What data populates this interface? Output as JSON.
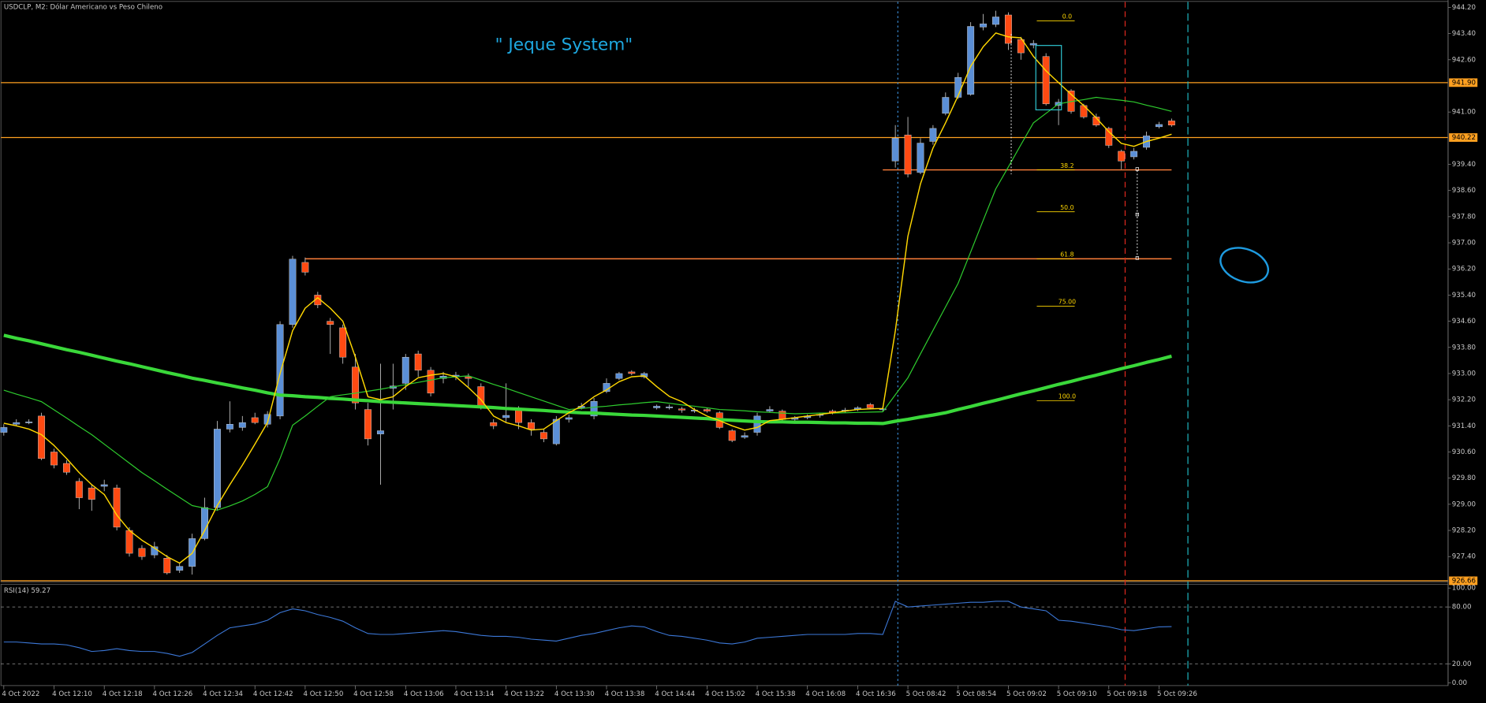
{
  "chart_data": [
    {
      "type": "candlestick",
      "title": "USDCLP, M2:  Dólar Americano vs Peso Chileno",
      "annotation": "\" Jeque System\"",
      "categories": [
        "4 Oct 2022",
        null,
        null,
        null,
        "4 Oct 12:10",
        null,
        null,
        null,
        "4 Oct 12:18",
        null,
        null,
        null,
        "4 Oct 12:26",
        null,
        null,
        null,
        "4 Oct 12:34",
        null,
        null,
        null,
        "4 Oct 12:42",
        null,
        null,
        null,
        "4 Oct 12:50",
        null,
        null,
        null,
        "4 Oct 12:58",
        null,
        null,
        null,
        "4 Oct 13:06",
        null,
        null,
        null,
        "4 Oct 13:14",
        null,
        null,
        null,
        "4 Oct 13:22",
        null,
        null,
        null,
        "4 Oct 13:30",
        null,
        null,
        null,
        "4 Oct 13:38",
        null,
        null,
        null,
        "4 Oct 14:44",
        null,
        null,
        null,
        "4 Oct 15:02",
        null,
        null,
        null,
        "4 Oct 15:38",
        null,
        null,
        null,
        "4 Oct 16:08",
        null,
        null,
        null,
        "4 Oct 16:36",
        null,
        null,
        null,
        "5 Oct 08:42",
        null,
        null,
        null,
        "5 Oct 08:54",
        null,
        null,
        null,
        "5 Oct 09:02",
        null,
        null,
        null,
        "5 Oct 09:10",
        null,
        null,
        null,
        "5 Oct 09:18",
        null,
        null,
        null,
        "5 Oct 09:26",
        null
      ],
      "open": [
        931.2,
        931.45,
        931.5,
        931.7,
        930.6,
        930.25,
        929.7,
        929.5,
        929.55,
        929.5,
        928.2,
        927.65,
        927.45,
        927.35,
        926.98,
        927.1,
        927.95,
        928.9,
        931.3,
        931.35,
        931.65,
        931.45,
        931.7,
        934.5,
        936.4,
        935.4,
        934.6,
        934.4,
        933.2,
        931.9,
        931.15,
        932.55,
        932.7,
        933.6,
        933.1,
        932.85,
        932.9,
        932.9,
        932.6,
        931.5,
        931.65,
        931.9,
        931.5,
        931.2,
        930.85,
        931.6,
        931.95,
        931.7,
        932.45,
        932.85,
        933.05,
        932.9,
        931.95,
        931.95,
        931.92,
        931.85,
        931.9,
        931.8,
        931.25,
        931.05,
        931.2,
        931.85,
        931.85,
        931.6,
        931.65,
        931.72,
        931.85,
        931.85,
        931.9,
        932.05,
        931.9,
        939.5,
        940.3,
        939.15,
        940.1,
        940.96,
        941.45,
        941.54,
        943.6,
        943.68,
        943.97,
        943.22,
        943.05,
        942.7,
        941.2,
        941.65,
        941.2,
        940.85,
        940.5,
        939.8,
        939.63,
        939.92,
        940.55,
        940.73
      ],
      "high": [
        931.45,
        931.6,
        931.6,
        931.8,
        930.7,
        930.35,
        929.8,
        929.6,
        929.75,
        929.6,
        928.3,
        927.75,
        927.85,
        927.45,
        927.2,
        928.1,
        929.2,
        931.55,
        932.15,
        931.7,
        931.8,
        931.85,
        934.6,
        936.6,
        936.55,
        935.5,
        934.7,
        934.5,
        933.6,
        932.1,
        933.3,
        933.3,
        933.6,
        933.7,
        933.2,
        933.05,
        933.05,
        933.0,
        932.7,
        931.6,
        932.7,
        932.0,
        931.6,
        931.3,
        931.7,
        931.75,
        932.1,
        932.25,
        932.85,
        933.05,
        933.1,
        933.05,
        932.05,
        932.05,
        931.98,
        931.95,
        931.95,
        931.85,
        931.3,
        931.2,
        931.8,
        932.0,
        931.9,
        931.7,
        931.75,
        931.8,
        931.9,
        931.95,
        932.0,
        932.1,
        932.0,
        940.6,
        940.85,
        940.2,
        940.6,
        941.6,
        942.2,
        943.75,
        944.0,
        944.1,
        944.05,
        943.3,
        943.2,
        942.8,
        941.4,
        941.7,
        941.25,
        940.95,
        940.55,
        939.85,
        939.9,
        940.4,
        940.7,
        940.8
      ],
      "low": [
        931.1,
        931.4,
        931.45,
        930.35,
        930.1,
        929.9,
        928.85,
        928.8,
        929.4,
        928.2,
        927.4,
        927.3,
        927.35,
        926.85,
        926.9,
        926.85,
        927.9,
        928.8,
        931.2,
        931.25,
        931.45,
        931.35,
        931.6,
        934.4,
        936.0,
        935.0,
        933.6,
        933.3,
        931.9,
        930.8,
        929.6,
        931.9,
        932.5,
        932.9,
        932.3,
        932.7,
        932.8,
        932.6,
        931.9,
        931.3,
        931.5,
        931.3,
        931.1,
        930.9,
        930.8,
        931.5,
        931.9,
        931.6,
        932.4,
        932.8,
        932.95,
        932.85,
        931.9,
        931.9,
        931.8,
        931.8,
        931.8,
        931.3,
        930.9,
        931.0,
        931.1,
        931.8,
        931.5,
        931.55,
        931.6,
        931.65,
        931.75,
        931.8,
        931.85,
        931.9,
        931.85,
        939.3,
        939.0,
        939.1,
        940.0,
        940.9,
        941.4,
        941.5,
        943.5,
        943.6,
        942.9,
        942.6,
        942.95,
        941.2,
        940.6,
        940.95,
        940.8,
        940.55,
        939.9,
        939.25,
        939.55,
        939.85,
        940.5,
        940.55
      ],
      "close": [
        931.35,
        931.5,
        931.52,
        930.4,
        930.2,
        929.98,
        929.2,
        929.15,
        929.6,
        928.3,
        927.5,
        927.4,
        927.7,
        926.9,
        927.1,
        927.95,
        928.9,
        931.3,
        931.45,
        931.5,
        931.5,
        931.75,
        934.5,
        936.5,
        936.1,
        935.1,
        934.5,
        933.5,
        932.1,
        931.0,
        931.25,
        932.62,
        933.5,
        933.1,
        932.4,
        932.92,
        932.95,
        932.85,
        932.0,
        931.4,
        931.72,
        931.5,
        931.3,
        931.0,
        931.6,
        931.65,
        932.0,
        932.15,
        932.7,
        933.0,
        933.0,
        933.0,
        932.0,
        931.98,
        931.88,
        931.88,
        931.85,
        931.35,
        930.95,
        931.1,
        931.7,
        931.9,
        931.6,
        931.65,
        931.7,
        931.75,
        931.8,
        931.88,
        931.95,
        931.95,
        931.92,
        940.2,
        939.1,
        940.05,
        940.5,
        941.45,
        942.06,
        943.62,
        943.7,
        943.91,
        943.1,
        942.81,
        943.1,
        941.25,
        941.3,
        941.02,
        940.85,
        940.6,
        939.98,
        939.5,
        939.8,
        940.27,
        940.62,
        940.6
      ],
      "up_color": "#5b8fd6",
      "down_color": "#ff4a12",
      "wick_color": "#c8c8c8",
      "series": [
        {
          "color": "#3ad83a",
          "line_width": 3.5,
          "values": [
            934.17,
            934.08,
            934.0,
            933.91,
            933.82,
            933.73,
            933.65,
            933.56,
            933.47,
            933.38,
            933.3,
            933.21,
            933.12,
            933.03,
            932.95,
            932.86,
            932.79,
            932.71,
            932.64,
            932.56,
            932.49,
            932.41,
            932.34,
            932.32,
            932.29,
            932.27,
            932.24,
            932.22,
            932.19,
            932.17,
            932.14,
            932.12,
            932.1,
            932.08,
            932.06,
            932.04,
            932.02,
            932.0,
            931.98,
            931.96,
            931.93,
            931.91,
            931.89,
            931.87,
            931.84,
            931.82,
            931.8,
            931.79,
            931.77,
            931.75,
            931.73,
            931.72,
            931.7,
            931.68,
            931.66,
            931.64,
            931.62,
            931.59,
            931.57,
            931.55,
            931.53,
            931.52,
            931.52,
            931.51,
            931.51,
            931.5,
            931.49,
            931.49,
            931.48,
            931.48,
            931.47,
            931.54,
            931.6,
            931.67,
            931.73,
            931.8,
            931.9,
            931.99,
            932.09,
            932.18,
            932.28,
            932.38,
            932.47,
            932.57,
            932.67,
            932.76,
            932.86,
            932.95,
            933.05,
            933.15,
            933.24,
            933.34,
            933.43,
            933.53
          ]
        },
        {
          "color": "#2ecc2e",
          "line_width": 1,
          "values": [
            932.49,
            932.37,
            932.26,
            932.14,
            931.89,
            931.64,
            931.38,
            931.13,
            930.84,
            930.55,
            930.26,
            929.97,
            929.72,
            929.46,
            929.21,
            928.96,
            928.88,
            928.82,
            928.95,
            929.1,
            929.3,
            929.54,
            930.4,
            931.42,
            931.7,
            932.0,
            932.29,
            932.35,
            932.4,
            932.46,
            932.52,
            932.59,
            932.66,
            932.73,
            932.8,
            932.87,
            932.9,
            932.93,
            932.8,
            932.67,
            932.55,
            932.42,
            932.29,
            932.16,
            932.03,
            931.9,
            931.93,
            931.97,
            932.0,
            932.04,
            932.07,
            932.11,
            932.14,
            932.09,
            932.04,
            932.0,
            931.95,
            931.9,
            931.88,
            931.86,
            931.83,
            931.81,
            931.79,
            931.77,
            931.78,
            931.79,
            931.79,
            931.8,
            931.81,
            931.82,
            931.83,
            932.35,
            932.87,
            933.6,
            934.32,
            935.04,
            935.76,
            936.72,
            937.69,
            938.65,
            939.32,
            940.0,
            940.67,
            940.96,
            941.25,
            941.32,
            941.38,
            941.45,
            941.4,
            941.36,
            941.31,
            941.21,
            941.12,
            941.02
          ]
        },
        {
          "color": "#ffd700",
          "line_width": 1.2,
          "values": [
            931.48,
            931.4,
            931.3,
            931.13,
            930.8,
            930.4,
            929.97,
            929.6,
            929.3,
            928.67,
            928.2,
            927.9,
            927.66,
            927.4,
            927.2,
            927.5,
            928.2,
            928.96,
            929.6,
            930.2,
            930.84,
            931.5,
            933.0,
            934.31,
            935.0,
            935.32,
            935.0,
            934.6,
            933.5,
            932.29,
            932.2,
            932.29,
            932.6,
            932.87,
            932.95,
            933.0,
            932.9,
            932.57,
            932.2,
            931.7,
            931.5,
            931.4,
            931.27,
            931.3,
            931.56,
            931.8,
            932.0,
            932.29,
            932.5,
            932.75,
            932.9,
            932.93,
            932.6,
            932.3,
            932.14,
            931.9,
            931.7,
            931.56,
            931.4,
            931.27,
            931.35,
            931.56,
            931.6,
            931.65,
            931.7,
            931.75,
            931.8,
            931.85,
            931.9,
            931.92,
            931.93,
            934.31,
            937.2,
            938.8,
            939.9,
            940.67,
            941.5,
            942.4,
            943.0,
            943.42,
            943.3,
            943.27,
            942.7,
            942.26,
            941.9,
            941.54,
            941.2,
            940.82,
            940.4,
            940.04,
            939.95,
            940.1,
            940.2,
            940.32
          ]
        }
      ],
      "ylim": [
        926.64,
        944.37
      ],
      "yticks": [
        {
          "value": 944.2,
          "label": "944.20"
        },
        {
          "value": 943.4,
          "label": "943.40"
        },
        {
          "value": 942.6,
          "label": "942.60"
        },
        {
          "value": 941.0,
          "label": "941.00"
        },
        {
          "value": 939.4,
          "label": "939.40"
        },
        {
          "value": 938.6,
          "label": "938.60"
        },
        {
          "value": 937.8,
          "label": "937.80"
        },
        {
          "value": 937.0,
          "label": "937.00"
        },
        {
          "value": 936.2,
          "label": "936.20"
        },
        {
          "value": 935.4,
          "label": "935.40"
        },
        {
          "value": 934.6,
          "label": "934.60"
        },
        {
          "value": 933.8,
          "label": "933.80"
        },
        {
          "value": 933.0,
          "label": "933.00"
        },
        {
          "value": 932.2,
          "label": "932.20"
        },
        {
          "value": 931.4,
          "label": "931.40"
        },
        {
          "value": 930.6,
          "label": "930.60"
        },
        {
          "value": 929.8,
          "label": "929.80"
        },
        {
          "value": 929.0,
          "label": "929.00"
        },
        {
          "value": 928.2,
          "label": "928.20"
        },
        {
          "value": 927.4,
          "label": "927.40"
        }
      ],
      "hlines": [
        {
          "value": 941.9,
          "label": "941.90",
          "color": "#ffa020"
        },
        {
          "value": 940.22,
          "label": "940.22",
          "color": "#ffa020"
        },
        {
          "value": 926.66,
          "label": "926.66",
          "color": "#ffa020"
        }
      ],
      "segments": [
        {
          "price": 939.23,
          "start": 70,
          "end": 93,
          "color": "#ff7f3a"
        },
        {
          "price": 936.51,
          "start": 24,
          "end": 93,
          "color": "#ff7f3a"
        }
      ],
      "fibonacci": {
        "color": "#ffd700",
        "levels": [
          {
            "price": 943.79,
            "label": "0.0"
          },
          {
            "price": 939.23,
            "label": "38.2"
          },
          {
            "price": 937.95,
            "label": "50.0"
          },
          {
            "price": 936.51,
            "label": "61.8"
          },
          {
            "price": 935.06,
            "label": "75.00"
          },
          {
            "price": 932.17,
            "label": "100.0"
          }
        ]
      },
      "vlines": [
        {
          "index": 71.2,
          "color": "#3b8ed8",
          "dash": "2,3"
        },
        {
          "index": 89.3,
          "color": "#e0281e",
          "dash": "6,4"
        },
        {
          "index": 94.3,
          "color": "#1fb5c0",
          "dash": "8,4"
        }
      ]
    },
    {
      "type": "line",
      "title": "RSI(14) 59.27",
      "color": "#3c78d8",
      "values": [
        43,
        43,
        42,
        41,
        41,
        40,
        37,
        33,
        34,
        36,
        34,
        33,
        33,
        31,
        28,
        32,
        41,
        50,
        58,
        60,
        62,
        66,
        74,
        78,
        76,
        72,
        69,
        65,
        58,
        52,
        51,
        51,
        52,
        53,
        54,
        55,
        54,
        52,
        50,
        49,
        49,
        48,
        46,
        45,
        44,
        47,
        50,
        52,
        55,
        58,
        60,
        59,
        54,
        50,
        49,
        47,
        45,
        42,
        41,
        43,
        47,
        48,
        49,
        50,
        51,
        51,
        51,
        51,
        52,
        52,
        51,
        86,
        80,
        81,
        82,
        83,
        84,
        85,
        85,
        86,
        86,
        80,
        78,
        76,
        66,
        65,
        63,
        61,
        59,
        56,
        55,
        57,
        59,
        59.27
      ],
      "ylim": [
        0,
        100
      ],
      "yticks": [
        {
          "value": 100,
          "label": "100.00"
        },
        {
          "value": 80,
          "label": "80.00"
        },
        {
          "value": 20,
          "label": "20.00"
        },
        {
          "value": 0,
          "label": "0.00"
        }
      ],
      "levels": [
        80,
        20
      ]
    }
  ]
}
